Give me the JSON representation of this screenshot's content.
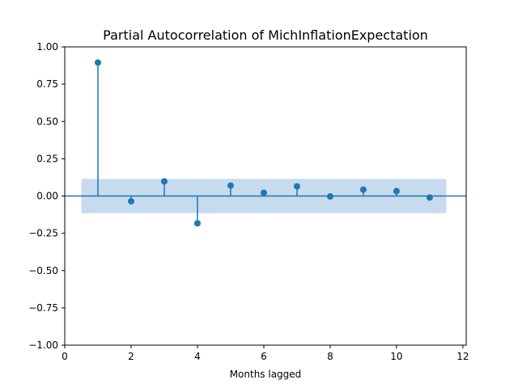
{
  "chart_data": {
    "type": "scatter",
    "subtype": "stem-partial-autocorrelation",
    "title": "Partial Autocorrelation of MichInflationExpectation",
    "xlabel": "Months lagged",
    "ylabel": "",
    "xlim": [
      0,
      12.1
    ],
    "ylim": [
      -1.0,
      1.0
    ],
    "xticks": [
      0,
      2,
      4,
      6,
      8,
      10,
      12
    ],
    "yticks": [
      1.0,
      0.75,
      0.5,
      0.25,
      0.0,
      -0.25,
      -0.5,
      -0.75,
      -1.0
    ],
    "ytick_labels": [
      "1.00",
      "0.75",
      "0.50",
      "0.25",
      "0.00",
      "−0.25",
      "−0.50",
      "−0.75",
      "−1.00"
    ],
    "grid": false,
    "series": [
      {
        "x": [
          1,
          2,
          3,
          4,
          5,
          6,
          7,
          8,
          9,
          10,
          11
        ],
        "values": [
          0.895,
          -0.035,
          0.098,
          -0.183,
          0.07,
          0.022,
          0.065,
          -0.003,
          0.043,
          0.033,
          -0.01
        ]
      }
    ],
    "confidence_band": {
      "x": [
        0.5,
        11.5
      ],
      "lower": -0.115,
      "upper": 0.115
    },
    "colors": {
      "series": "#1f77b4",
      "band": "#c6dbed",
      "axis": "#000000"
    }
  }
}
